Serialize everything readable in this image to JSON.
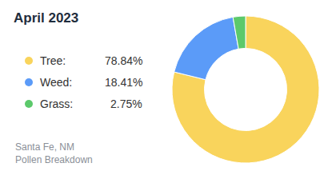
{
  "chart_data": {
    "type": "pie",
    "title": "April 2023",
    "categories": [
      "Tree:",
      "Weed:",
      "Grass:"
    ],
    "values": [
      78.84,
      18.41,
      2.75
    ],
    "value_labels": [
      "78.84%",
      "18.41%",
      "2.75%"
    ],
    "colors": [
      "#f9d45c",
      "#5b9bf8",
      "#5cc96b"
    ],
    "legend": "left",
    "footer": [
      "Santa Fe, NM",
      "Pollen Breakdown"
    ]
  }
}
